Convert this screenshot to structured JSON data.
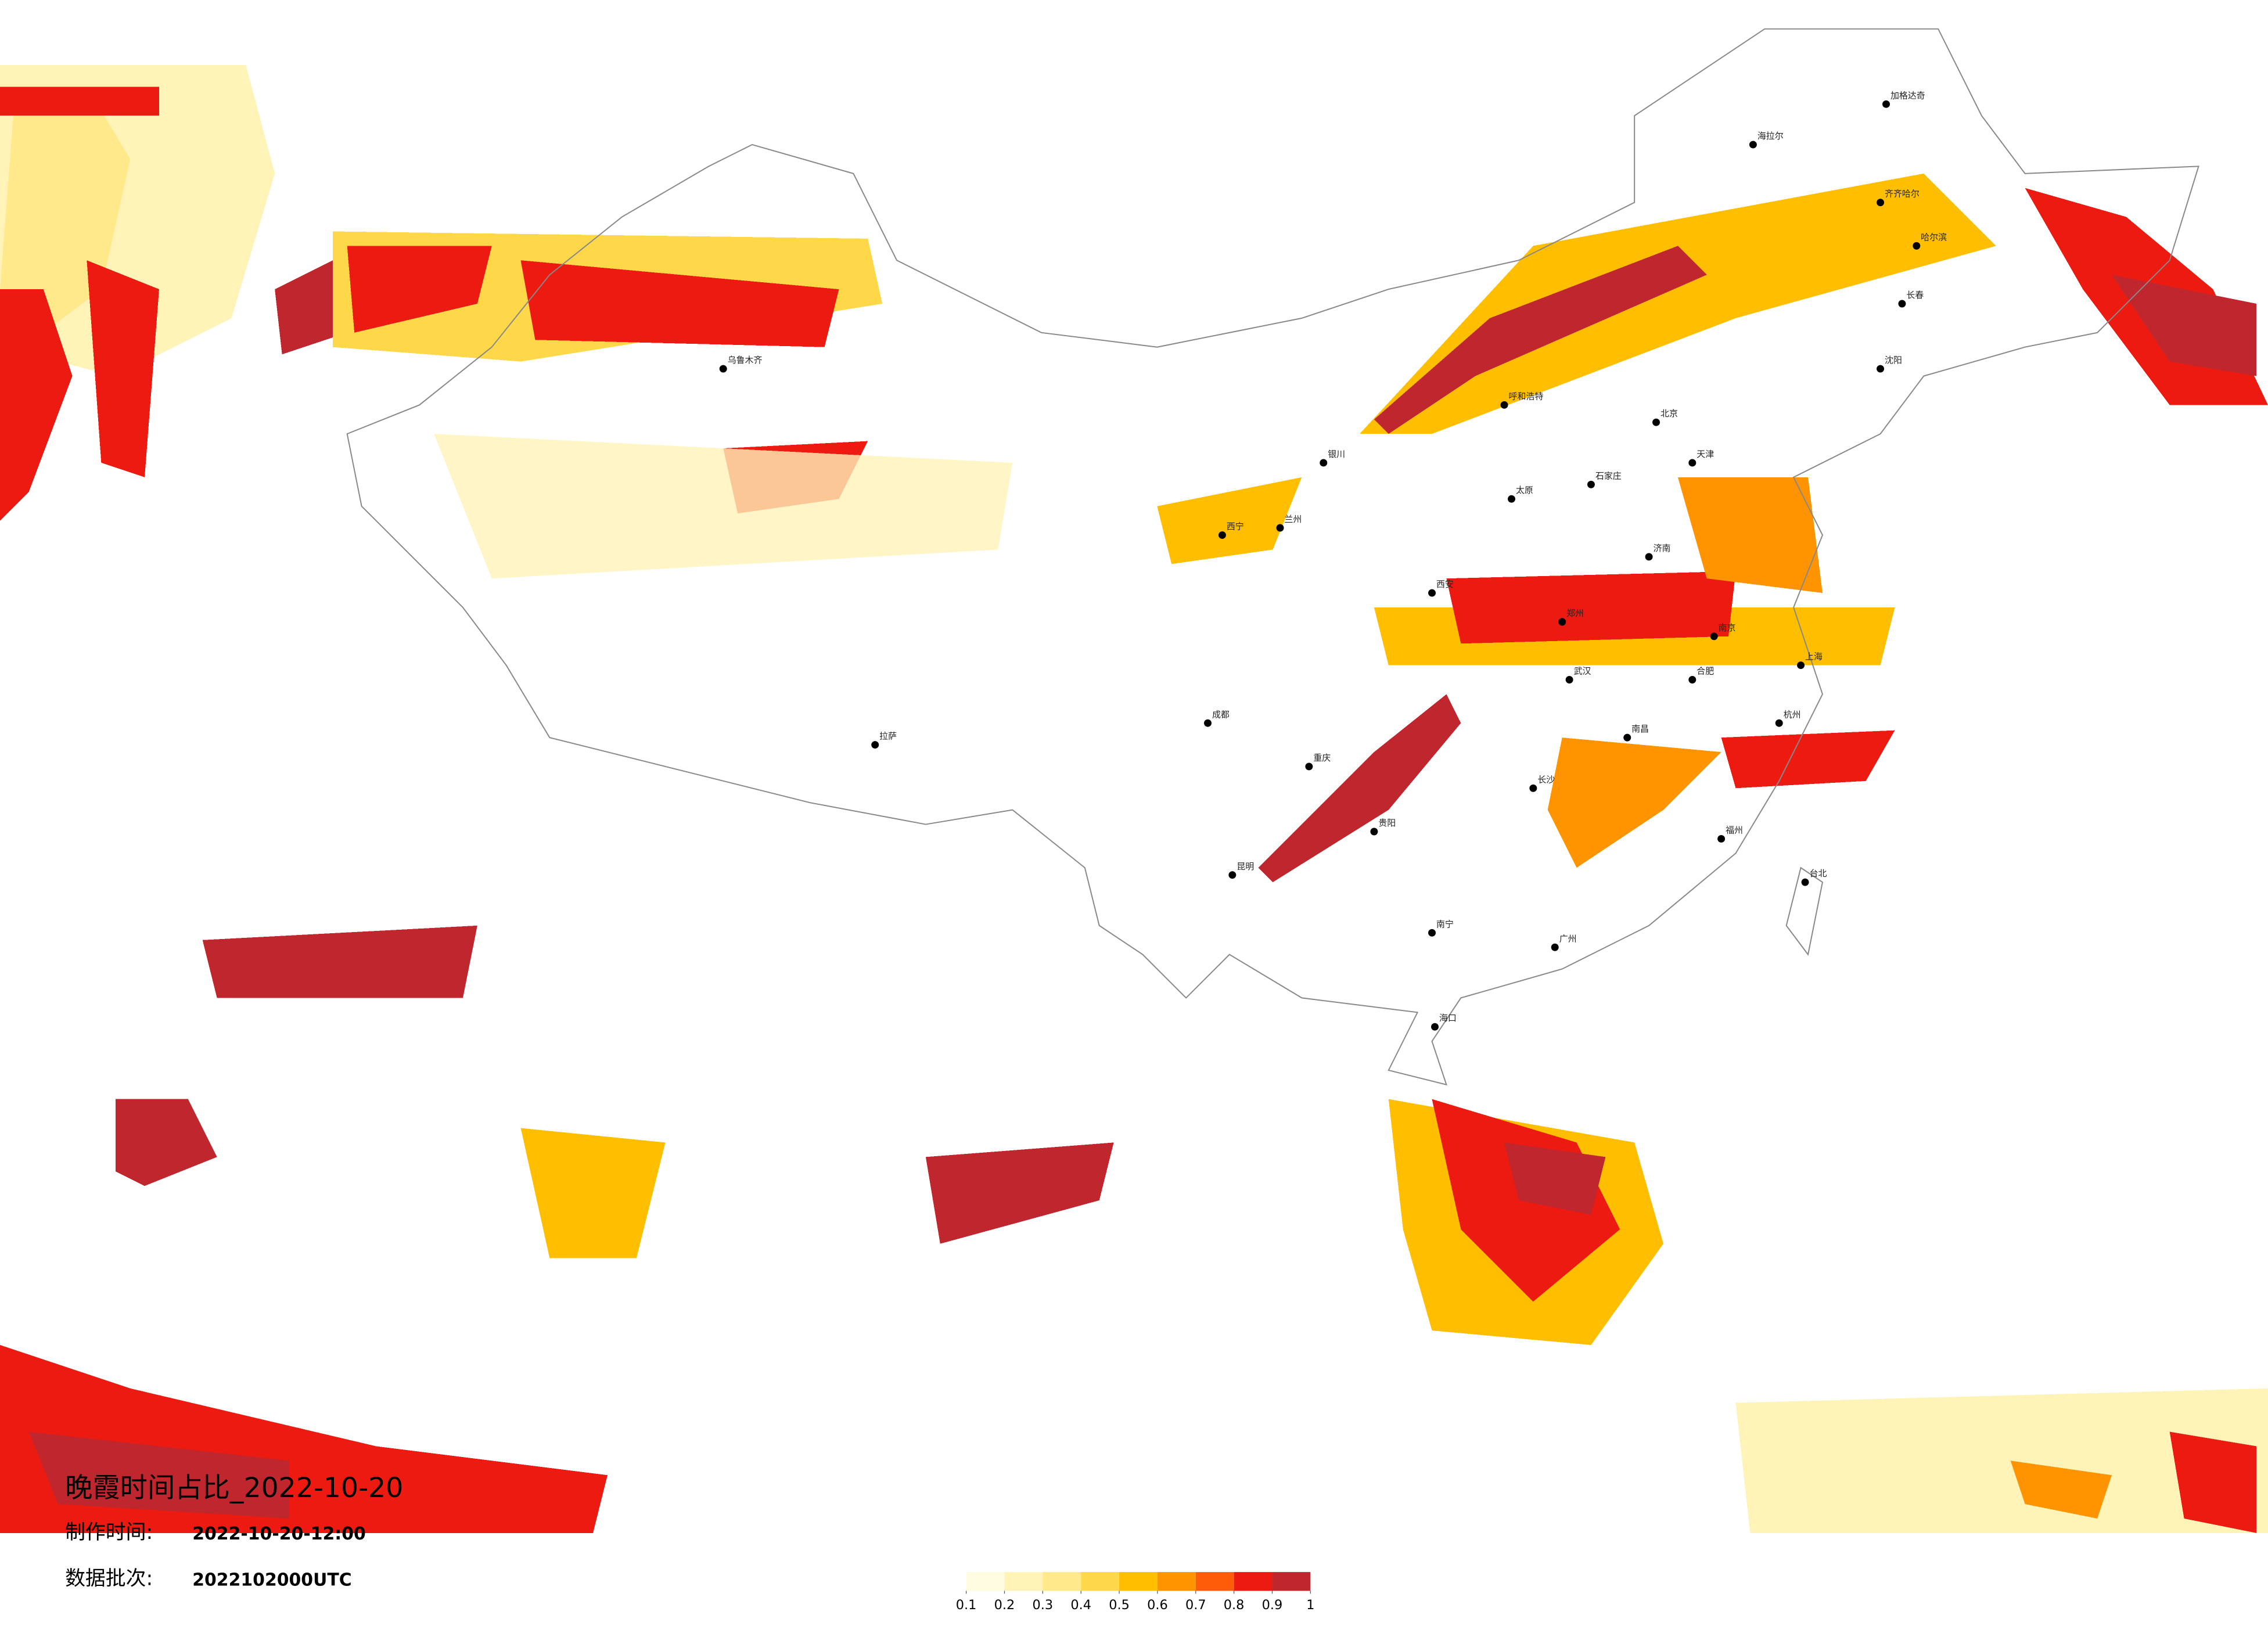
{
  "title": "晚霞时间占比_2022-10-20",
  "made_time": {
    "label": "制作时间:",
    "value": "2022-10-20-12:00"
  },
  "batch": {
    "label": "数据批次:",
    "value": "2022102000UTC"
  },
  "legend": {
    "ticks": [
      0.1,
      0.2,
      0.3,
      0.4,
      0.5,
      0.6,
      0.7,
      0.8,
      0.9,
      1
    ],
    "colors": [
      "#fffbe0",
      "#fff3b8",
      "#ffe98a",
      "#ffd84a",
      "#ffbf00",
      "#ff9300",
      "#ff5c0a",
      "#ec1a10",
      "#c0262e"
    ]
  },
  "cities": [
    "海拉尔",
    "加格达奇",
    "齐齐哈尔",
    "哈尔滨",
    "长春",
    "沈阳",
    "呼和浩特",
    "北京",
    "天津",
    "石家庄",
    "太原",
    "济南",
    "郑州",
    "西安",
    "兰州",
    "西宁",
    "银川",
    "武汉",
    "南京",
    "上海",
    "杭州",
    "合肥",
    "南昌",
    "长沙",
    "福州",
    "广州",
    "南宁",
    "海口",
    "贵阳",
    "昆明",
    "成都",
    "重庆",
    "拉萨",
    "乌鲁木齐",
    "台北"
  ]
}
